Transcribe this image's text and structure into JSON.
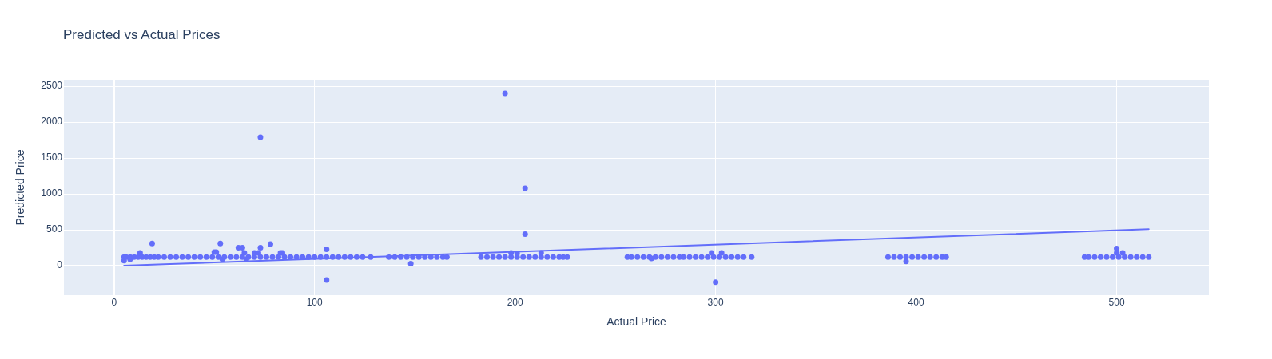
{
  "chart_data": {
    "type": "scatter",
    "title": "Predicted vs Actual Prices",
    "xlabel": "Actual Price",
    "ylabel": "Predicted Price",
    "xlim": [
      -25,
      546
    ],
    "ylim": [
      -410,
      2590
    ],
    "xticks": [
      0,
      100,
      200,
      300,
      400,
      500
    ],
    "yticks": [
      0,
      500,
      1000,
      1500,
      2000,
      2500
    ],
    "grid": true,
    "marker": "circle",
    "series": [
      {
        "type": "scatter",
        "color": "#636efa",
        "x": [
          5,
          5,
          6,
          8,
          8,
          10,
          12,
          13,
          14,
          16,
          18,
          19,
          20,
          22,
          25,
          28,
          31,
          34,
          37,
          40,
          43,
          46,
          49,
          50,
          51,
          52,
          53,
          54,
          55,
          58,
          61,
          62,
          64,
          64,
          65,
          66,
          67,
          70,
          70,
          72,
          73,
          73,
          73,
          76,
          78,
          79,
          82,
          83,
          84,
          85,
          88,
          91,
          94,
          97,
          100,
          103,
          106,
          106,
          106,
          109,
          112,
          115,
          118,
          121,
          124,
          128,
          137,
          140,
          143,
          146,
          148,
          149,
          152,
          155,
          158,
          161,
          164,
          166,
          183,
          186,
          189,
          192,
          195,
          195,
          198,
          198,
          201,
          201,
          204,
          205,
          205,
          207,
          210,
          213,
          213,
          216,
          219,
          222,
          224,
          226,
          256,
          258,
          261,
          264,
          267,
          268,
          270,
          273,
          276,
          279,
          282,
          284,
          287,
          290,
          293,
          296,
          298,
          299,
          300,
          302,
          303,
          305,
          308,
          311,
          314,
          318,
          386,
          389,
          392,
          395,
          395,
          398,
          401,
          404,
          407,
          410,
          413,
          415,
          484,
          486,
          489,
          492,
          495,
          498,
          500,
          500,
          501,
          503,
          504,
          507,
          510,
          513,
          516
        ],
        "values": [
          120,
          70,
          120,
          120,
          90,
          120,
          120,
          180,
          120,
          120,
          120,
          310,
          120,
          120,
          120,
          120,
          120,
          120,
          120,
          120,
          120,
          120,
          120,
          190,
          190,
          120,
          310,
          90,
          120,
          120,
          120,
          250,
          120,
          250,
          180,
          90,
          120,
          120,
          180,
          180,
          120,
          250,
          1790,
          120,
          300,
          120,
          120,
          180,
          180,
          120,
          120,
          120,
          120,
          120,
          120,
          120,
          120,
          230,
          -200,
          120,
          120,
          120,
          120,
          120,
          120,
          120,
          120,
          120,
          120,
          120,
          30,
          120,
          120,
          120,
          120,
          120,
          120,
          120,
          120,
          120,
          120,
          120,
          120,
          2400,
          120,
          180,
          120,
          170,
          120,
          1080,
          440,
          120,
          120,
          120,
          180,
          120,
          120,
          120,
          120,
          120,
          120,
          120,
          120,
          120,
          120,
          100,
          120,
          120,
          120,
          120,
          120,
          120,
          120,
          120,
          120,
          120,
          180,
          120,
          -230,
          120,
          180,
          120,
          120,
          120,
          120,
          120,
          120,
          120,
          120,
          120,
          60,
          120,
          120,
          120,
          120,
          120,
          120,
          120,
          120,
          120,
          120,
          120,
          120,
          120,
          240,
          180,
          120,
          180,
          120,
          120,
          120,
          120,
          120
        ]
      },
      {
        "type": "line",
        "color": "#636efa",
        "marker": "none",
        "x": [
          5,
          516
        ],
        "values": [
          0,
          510
        ]
      }
    ]
  }
}
